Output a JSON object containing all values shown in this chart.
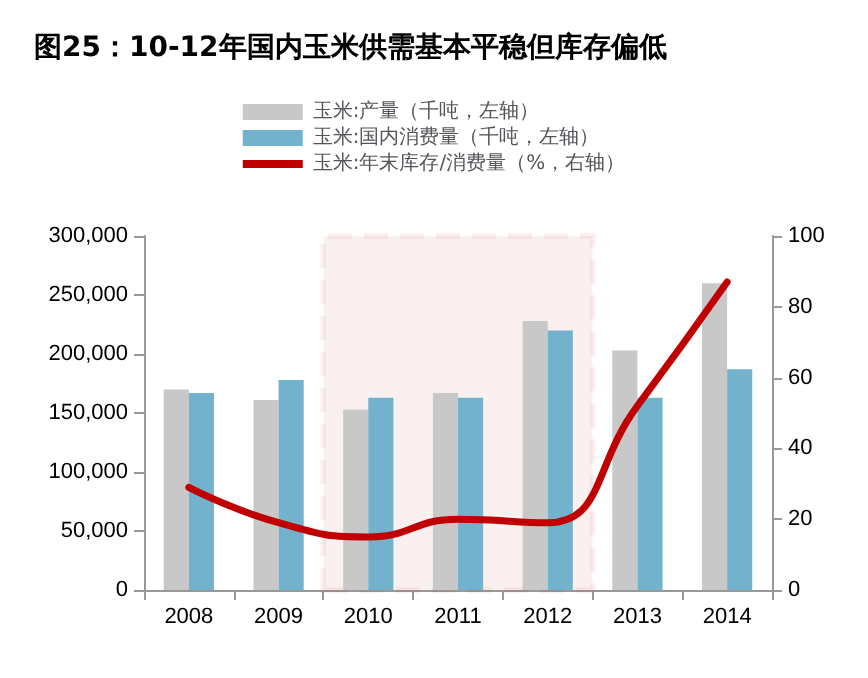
{
  "chart_data": {
    "type": "bar",
    "title": "图25：10-12年国内玉米供需基本平稳但库存偏低",
    "categories": [
      "2008",
      "2009",
      "2010",
      "2011",
      "2012",
      "2013",
      "2014"
    ],
    "series": [
      {
        "name": "玉米:产量（千吨，左轴）",
        "color": "#c8c8c8",
        "values": [
          170000,
          161000,
          153000,
          167000,
          228000,
          203000,
          260000
        ]
      },
      {
        "name": "玉米:国内消费量（千吨，左轴）",
        "color": "#72b2cc",
        "values": [
          167000,
          178000,
          163000,
          163000,
          220000,
          163000,
          187000
        ]
      },
      {
        "name": "玉米:年末库存/消费量（%，右轴）",
        "type": "line",
        "axis": "y2",
        "color": "#c00000",
        "values": [
          29,
          19,
          15,
          20,
          19,
          52,
          87
        ]
      }
    ],
    "ylim": [
      0,
      300000
    ],
    "yticks": [
      0,
      {
        "value": 50000,
        "label": "50,000"
      },
      {
        "value": 100000,
        "label": "100,000"
      },
      {
        "value": 150000,
        "label": "150,000"
      },
      {
        "value": 200000,
        "label": "200,000"
      },
      {
        "value": 250000,
        "label": "250,000"
      },
      {
        "value": 300000,
        "label": "300,000"
      }
    ],
    "y2lim": [
      0,
      100
    ],
    "y2ticks": [
      0,
      20,
      40,
      60,
      80,
      100
    ],
    "bands": [
      {
        "axis": "x",
        "from": "2010",
        "to": "2012",
        "color": "#c00000"
      }
    ],
    "marker": "none",
    "legend": "top",
    "grid": false
  }
}
